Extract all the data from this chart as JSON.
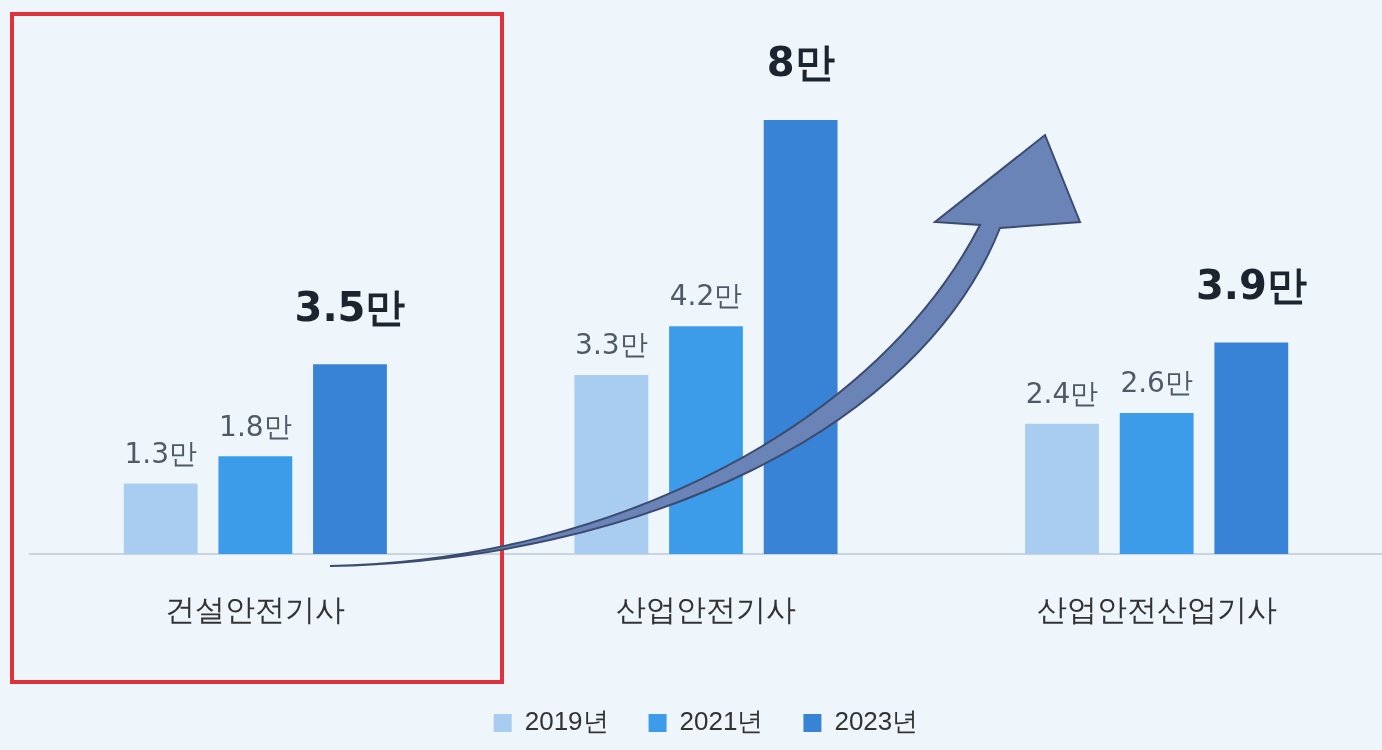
{
  "chart_data": {
    "type": "bar",
    "categories": [
      "건설안전기사",
      "산업안전기사",
      "산업안전산업기사"
    ],
    "series": [
      {
        "name": "2019년",
        "color": "#a8cdf1",
        "values": [
          1.3,
          3.3,
          2.4
        ],
        "value_labels": [
          "1.3만",
          "3.3만",
          "2.4만"
        ]
      },
      {
        "name": "2021년",
        "color": "#3c9cea",
        "values": [
          1.8,
          4.2,
          2.6
        ],
        "value_labels": [
          "1.8만",
          "4.2만",
          "2.6만"
        ]
      },
      {
        "name": "2023년",
        "color": "#3883d5",
        "values": [
          3.5,
          8,
          3.9
        ],
        "value_labels": [
          "3.5만",
          "8만",
          "3.9만"
        ]
      }
    ],
    "legend": "bottom",
    "grid": false,
    "tick_labels": "x"
  }
}
